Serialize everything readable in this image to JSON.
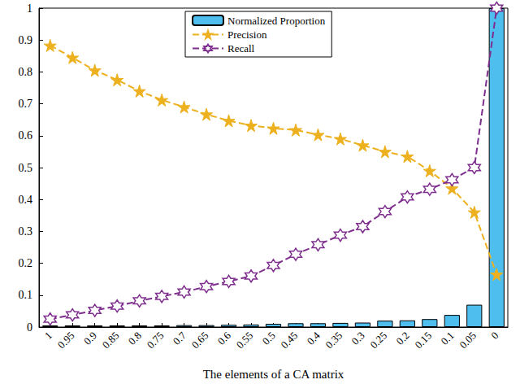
{
  "chart_data": {
    "type": "bar",
    "x_label": "The elements of a CA matrix",
    "categories": [
      "1",
      "0.95",
      "0.9",
      "0.85",
      "0.8",
      "0.75",
      "0.7",
      "0.65",
      "0.6",
      "0.55",
      "0.5",
      "0.45",
      "0.4",
      "0.35",
      "0.3",
      "0.25",
      "0.2",
      "0.15",
      "0.1",
      "0.05",
      "0"
    ],
    "series": [
      {
        "name": "Normalized Proportion",
        "type": "bar",
        "color": "#4dbeee",
        "values": [
          0.005,
          0.005,
          0.005,
          0.005,
          0.005,
          0.005,
          0.006,
          0.006,
          0.007,
          0.008,
          0.01,
          0.012,
          0.012,
          0.013,
          0.014,
          0.02,
          0.021,
          0.025,
          0.038,
          0.07,
          1.0
        ]
      },
      {
        "name": "Precision",
        "type": "line",
        "color": "#edb120",
        "marker": "pentagram",
        "line_style": "dashed",
        "values": [
          0.883,
          0.845,
          0.805,
          0.775,
          0.74,
          0.712,
          0.69,
          0.667,
          0.647,
          0.632,
          0.623,
          0.618,
          0.603,
          0.59,
          0.57,
          0.55,
          0.535,
          0.49,
          0.435,
          0.36,
          0.165
        ]
      },
      {
        "name": "Recall",
        "type": "line",
        "color": "#7e2f8e",
        "marker": "hexagram",
        "line_style": "dashed",
        "values": [
          0.025,
          0.038,
          0.052,
          0.066,
          0.082,
          0.096,
          0.11,
          0.127,
          0.143,
          0.16,
          0.193,
          0.228,
          0.258,
          0.288,
          0.315,
          0.362,
          0.408,
          0.432,
          0.462,
          0.5,
          1.0
        ]
      }
    ],
    "ylim": [
      0,
      1
    ],
    "yticks": [
      0,
      0.1,
      0.2,
      0.3,
      0.4,
      0.5,
      0.6,
      0.7,
      0.8,
      0.9,
      1
    ],
    "grid": false,
    "legend": "top"
  }
}
